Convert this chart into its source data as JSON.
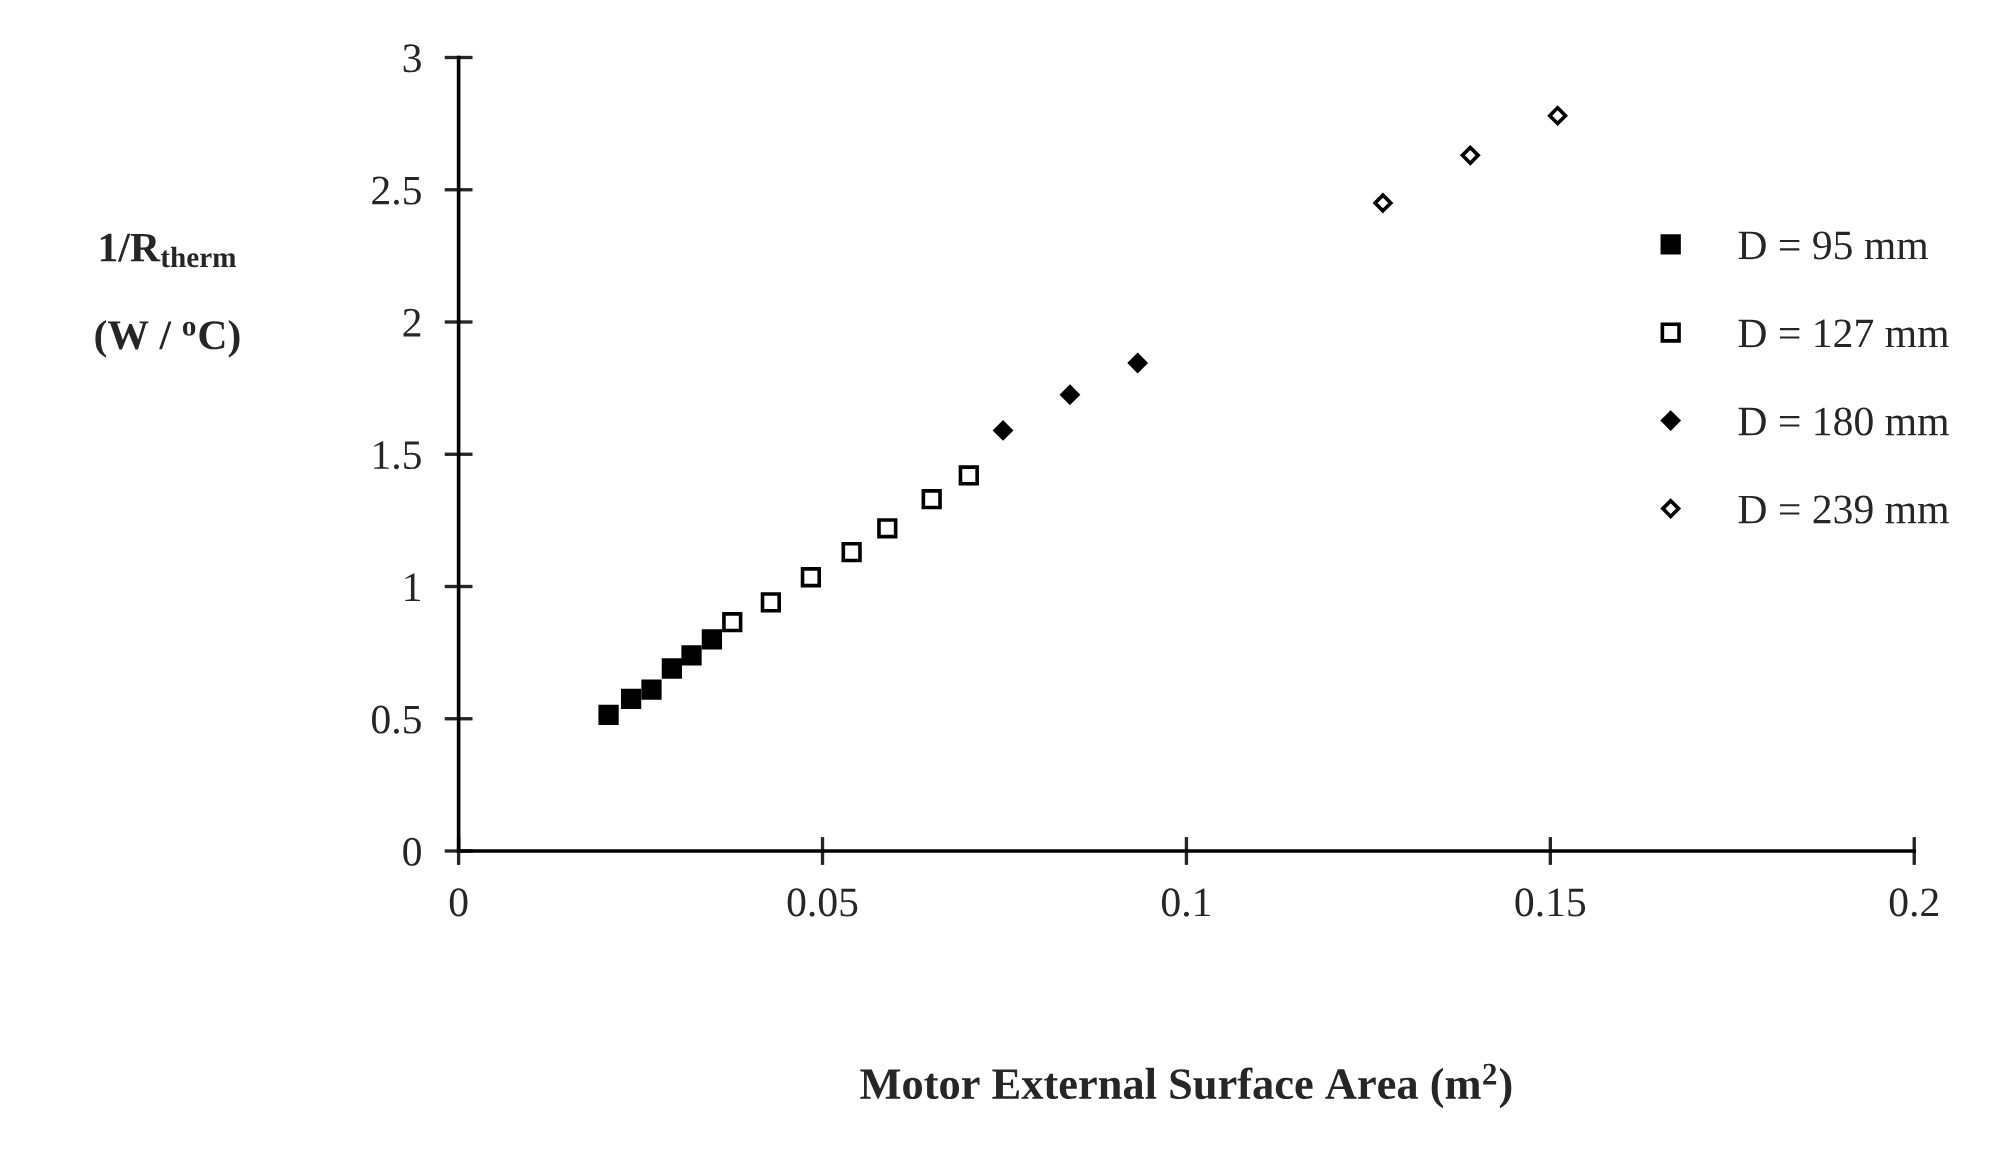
{
  "chart_data": {
    "type": "scatter",
    "xlabel": "Motor External Surface Area (m$^{2}$)",
    "ylabel": "1/R$_{therm}$\n\n(W / $^{o}$C)",
    "xlim": [
      0,
      0.2
    ],
    "xticks": [
      0,
      0.05,
      0.1,
      0.15,
      0.2
    ],
    "ylim": [
      0,
      3
    ],
    "yticks": [
      0,
      0.5,
      1,
      1.5,
      2,
      2.5,
      3
    ],
    "grid": false,
    "legend": "right",
    "series": [
      {
        "name": "D = 95 mm",
        "color": "#000000",
        "marker": "square",
        "x": [
          0.0206,
          0.0237,
          0.0265,
          0.0293,
          0.032,
          0.0348
        ],
        "values": [
          0.515,
          0.575,
          0.61,
          0.69,
          0.74,
          0.8
        ]
      },
      {
        "name": "D = 127 mm",
        "color": "#000000",
        "marker": "square",
        "x": [
          0.0376,
          0.0429,
          0.0484,
          0.054,
          0.0589,
          0.065,
          0.0701
        ],
        "values": [
          0.865,
          0.94,
          1.035,
          1.13,
          1.22,
          1.33,
          1.42
        ]
      },
      {
        "name": "D = 180 mm",
        "color": "#000000",
        "marker": "diamond",
        "x": [
          0.0748,
          0.084,
          0.0933
        ],
        "values": [
          1.59,
          1.725,
          1.845
        ]
      },
      {
        "name": "D = 239 mm",
        "color": "#000000",
        "marker": "diamond",
        "x": [
          0.127,
          0.139,
          0.151
        ],
        "values": [
          2.45,
          2.63,
          2.78
        ]
      }
    ]
  }
}
